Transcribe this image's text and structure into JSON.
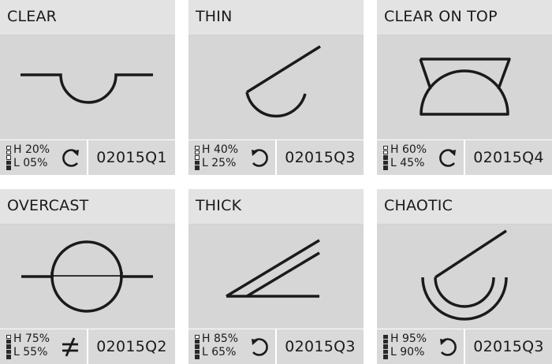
{
  "cards": [
    {
      "title": "CLEAR",
      "high": "H 20%",
      "low": "L 05%",
      "code": "02015Q1",
      "symbol": "rotate-clockwise-icon",
      "fill_high": 1,
      "fill_low": 0
    },
    {
      "title": "THIN",
      "high": "H 40%",
      "low": "L 25%",
      "code": "02015Q3",
      "symbol": "rotate-counterclockwise-icon",
      "fill_high": 2,
      "fill_low": 1
    },
    {
      "title": "CLEAR ON TOP",
      "high": "H 60%",
      "low": "L 45%",
      "code": "02015Q4",
      "symbol": "rotate-clockwise-icon",
      "fill_high": 3,
      "fill_low": 2
    },
    {
      "title": "OVERCAST",
      "high": "H 75%",
      "low": "L 55%",
      "code": "02015Q2",
      "symbol": "not-equal-icon",
      "fill_high": 3,
      "fill_low": 2
    },
    {
      "title": "THICK",
      "high": "H 85%",
      "low": "L 65%",
      "code": "02015Q3",
      "symbol": "rotate-counterclockwise-icon",
      "fill_high": 4,
      "fill_low": 3
    },
    {
      "title": "CHAOTIC",
      "high": "H 95%",
      "low": "L 90%",
      "code": "02015Q3",
      "symbol": "rotate-counterclockwise-icon",
      "fill_high": 5,
      "fill_low": 4
    }
  ],
  "colors": {
    "header": "#e3e3e3",
    "body": "#d6d6d6",
    "ink": "#1a1a1a"
  }
}
